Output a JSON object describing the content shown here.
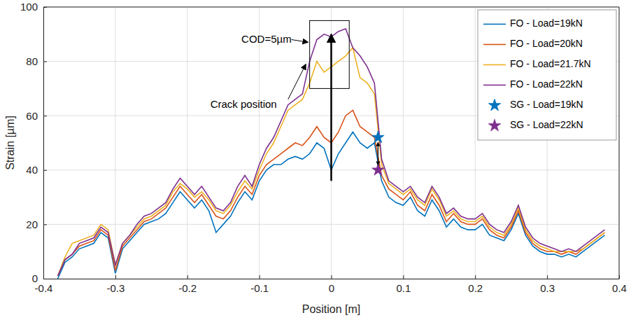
{
  "chart_data": {
    "type": "line",
    "x_label": "Position [m]",
    "y_label": "Strain [µm]",
    "annotations": [
      "COD=5µm",
      "Crack position"
    ],
    "x": [
      -0.38,
      -0.37,
      -0.36,
      -0.35,
      -0.34,
      -0.33,
      -0.32,
      -0.31,
      -0.3,
      -0.29,
      -0.28,
      -0.27,
      -0.26,
      -0.25,
      -0.24,
      -0.23,
      -0.22,
      -0.21,
      -0.2,
      -0.19,
      -0.18,
      -0.17,
      -0.16,
      -0.15,
      -0.14,
      -0.13,
      -0.12,
      -0.11,
      -0.1,
      -0.09,
      -0.08,
      -0.07,
      -0.06,
      -0.05,
      -0.04,
      -0.03,
      -0.02,
      -0.01,
      0,
      0.01,
      0.02,
      0.03,
      0.04,
      0.05,
      0.06,
      0.07,
      0.08,
      0.09,
      0.1,
      0.11,
      0.12,
      0.13,
      0.14,
      0.15,
      0.16,
      0.17,
      0.18,
      0.19,
      0.2,
      0.21,
      0.22,
      0.23,
      0.24,
      0.25,
      0.26,
      0.27,
      0.28,
      0.29,
      0.3,
      0.31,
      0.32,
      0.33,
      0.34,
      0.35,
      0.36,
      0.37,
      0.38
    ],
    "series": [
      {
        "name": "FO - Load=19kN",
        "color": "#0072BD",
        "type": "line",
        "values": [
          0,
          6,
          8,
          11,
          12,
          13,
          17,
          15,
          2,
          11,
          14,
          17,
          20,
          21,
          22,
          24,
          28,
          32,
          29,
          26,
          29,
          25,
          17,
          20,
          23,
          28,
          32,
          29,
          36,
          40,
          42,
          42,
          44,
          45,
          44,
          46,
          50,
          48,
          40,
          46,
          50,
          54,
          50,
          48,
          50,
          36,
          30,
          28,
          27,
          30,
          25,
          23,
          29,
          25,
          19,
          22,
          19,
          18,
          18,
          20,
          16,
          15,
          14,
          18,
          24,
          16,
          12,
          10,
          9,
          9,
          8,
          9,
          8,
          10,
          12,
          14,
          16
        ]
      },
      {
        "name": "FO - Load=20kN",
        "color": "#D95319",
        "type": "line",
        "values": [
          1,
          7,
          9,
          12,
          13,
          14,
          18,
          16,
          3,
          12,
          15,
          18,
          21,
          22,
          24,
          26,
          30,
          34,
          31,
          28,
          31,
          27,
          23,
          22,
          25,
          30,
          34,
          31,
          38,
          42,
          44,
          46,
          48,
          50,
          49,
          52,
          56,
          52,
          50,
          54,
          60,
          62,
          56,
          54,
          52,
          38,
          33,
          31,
          29,
          32,
          27,
          25,
          31,
          27,
          21,
          24,
          21,
          20,
          20,
          22,
          18,
          16,
          15,
          19,
          25,
          17,
          13,
          11,
          10,
          10,
          9,
          10,
          9,
          11,
          13,
          15,
          17
        ]
      },
      {
        "name": "FO - Load=21.7kN",
        "color": "#EDB120",
        "type": "line",
        "values": [
          1,
          8,
          13,
          14,
          15,
          16,
          20,
          18,
          5,
          13,
          16,
          19,
          22,
          23,
          25,
          27,
          32,
          35,
          33,
          30,
          32,
          29,
          25,
          24,
          27,
          32,
          36,
          33,
          40,
          46,
          50,
          56,
          62,
          64,
          66,
          72,
          80,
          76,
          78,
          80,
          82,
          85,
          74,
          72,
          68,
          42,
          35,
          33,
          31,
          33,
          29,
          27,
          33,
          29,
          23,
          25,
          22,
          21,
          21,
          23,
          19,
          17,
          16,
          20,
          26,
          18,
          14,
          12,
          11,
          10,
          10,
          10,
          10,
          11,
          13,
          15,
          17
        ]
      },
      {
        "name": "FO - Load=22kN",
        "color": "#7E2F8E",
        "type": "line",
        "values": [
          1,
          7,
          9,
          13,
          14,
          15,
          19,
          17,
          5,
          13,
          16,
          20,
          23,
          24,
          26,
          28,
          33,
          37,
          34,
          31,
          34,
          30,
          26,
          25,
          28,
          34,
          38,
          34,
          42,
          48,
          52,
          58,
          64,
          66,
          68,
          80,
          88,
          90,
          89,
          91,
          92,
          85,
          82,
          78,
          72,
          44,
          36,
          34,
          32,
          34,
          30,
          28,
          34,
          30,
          24,
          26,
          23,
          22,
          22,
          24,
          20,
          18,
          17,
          21,
          27,
          19,
          15,
          13,
          12,
          11,
          10,
          11,
          10,
          12,
          14,
          16,
          18
        ]
      },
      {
        "name": "SG - Load=19kN",
        "color": "#0072BD",
        "type": "scatter",
        "marker": "star",
        "x": [
          0.065
        ],
        "values": [
          52
        ]
      },
      {
        "name": "SG - Load=22kN",
        "color": "#7E2F8E",
        "type": "scatter",
        "marker": "star",
        "x": [
          0.065
        ],
        "values": [
          40
        ]
      }
    ],
    "xlim": [
      -0.4,
      0.4
    ],
    "ylim": [
      0,
      100
    ],
    "xticks": [
      -0.4,
      -0.3,
      -0.2,
      -0.1,
      0,
      0.1,
      0.2,
      0.3,
      0.4
    ],
    "yticks": [
      0,
      20,
      40,
      60,
      80,
      100
    ],
    "grid": true,
    "legend": "upper right"
  }
}
